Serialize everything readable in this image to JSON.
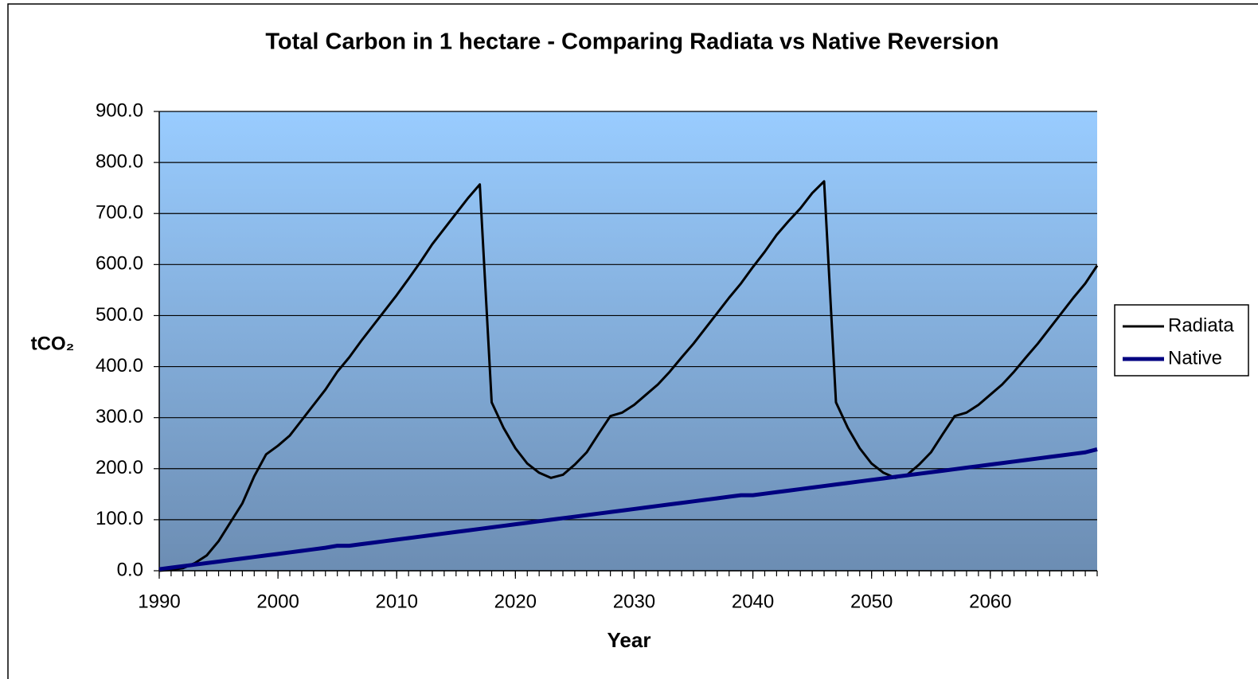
{
  "chart_data": {
    "type": "line",
    "title": "Total Carbon in 1 hectare - Comparing Radiata vs Native Reversion",
    "x_label": "Year",
    "y_label": "tCO₂",
    "x": [
      1990,
      1991,
      1992,
      1993,
      1994,
      1995,
      1996,
      1997,
      1998,
      1999,
      2000,
      2001,
      2002,
      2003,
      2004,
      2005,
      2006,
      2007,
      2008,
      2009,
      2010,
      2011,
      2012,
      2013,
      2014,
      2015,
      2016,
      2017,
      2018,
      2019,
      2020,
      2021,
      2022,
      2023,
      2024,
      2025,
      2026,
      2027,
      2028,
      2029,
      2030,
      2031,
      2032,
      2033,
      2034,
      2035,
      2036,
      2037,
      2038,
      2039,
      2040,
      2041,
      2042,
      2043,
      2044,
      2045,
      2046,
      2047,
      2048,
      2049,
      2050,
      2051,
      2052,
      2053,
      2054,
      2055,
      2056,
      2057,
      2058,
      2059,
      2060,
      2061,
      2062,
      2063,
      2064,
      2065,
      2066,
      2067,
      2068,
      2069
    ],
    "series": [
      {
        "name": "Radiata",
        "color": "#000000",
        "width": 3,
        "values": [
          0,
          2,
          5,
          15,
          30,
          58,
          95,
          132,
          185,
          228,
          245,
          265,
          295,
          325,
          355,
          390,
          418,
          450,
          480,
          510,
          540,
          572,
          605,
          640,
          670,
          700,
          730,
          757,
          330,
          280,
          240,
          210,
          192,
          182,
          188,
          208,
          232,
          268,
          303,
          310,
          325,
          345,
          365,
          390,
          418,
          445,
          475,
          505,
          535,
          563,
          595,
          625,
          658,
          685,
          710,
          740,
          763,
          330,
          280,
          240,
          210,
          192,
          182,
          188,
          208,
          232,
          268,
          303,
          310,
          325,
          345,
          365,
          390,
          418,
          445,
          475,
          505,
          535,
          563,
          598
        ]
      },
      {
        "name": "Native",
        "color": "#000080",
        "width": 5,
        "values": [
          3,
          6,
          9,
          12,
          15,
          18,
          21,
          24,
          27,
          30,
          33,
          36,
          39,
          42,
          45,
          49,
          49,
          52,
          55,
          58,
          61,
          64,
          67,
          70,
          73,
          76,
          79,
          82,
          85,
          88,
          91,
          94,
          97,
          100,
          103,
          106,
          109,
          112,
          115,
          118,
          121,
          124,
          127,
          130,
          133,
          136,
          139,
          142,
          145,
          148,
          148,
          151,
          154,
          157,
          160,
          163,
          166,
          169,
          172,
          175,
          178,
          181,
          184,
          187,
          190,
          193,
          196,
          199,
          202,
          205,
          208,
          211,
          214,
          217,
          220,
          223,
          226,
          229,
          232,
          238
        ]
      }
    ],
    "xlim": [
      1990,
      2069
    ],
    "xticks": [
      1990,
      2000,
      2010,
      2020,
      2030,
      2040,
      2050,
      2060
    ],
    "ylim": [
      0,
      900
    ],
    "yticks": [
      {
        "value": 0,
        "label": "0.0"
      },
      {
        "value": 100,
        "label": "100.0"
      },
      {
        "value": 200,
        "label": "200.0"
      },
      {
        "value": 300,
        "label": "300.0"
      },
      {
        "value": 400,
        "label": "400.0"
      },
      {
        "value": 500,
        "label": "500.0"
      },
      {
        "value": 600,
        "label": "600.0"
      },
      {
        "value": 700,
        "label": "700.0"
      },
      {
        "value": 800,
        "label": "800.0"
      },
      {
        "value": 900,
        "label": "900.0"
      }
    ],
    "grid": true,
    "legend": "right"
  }
}
